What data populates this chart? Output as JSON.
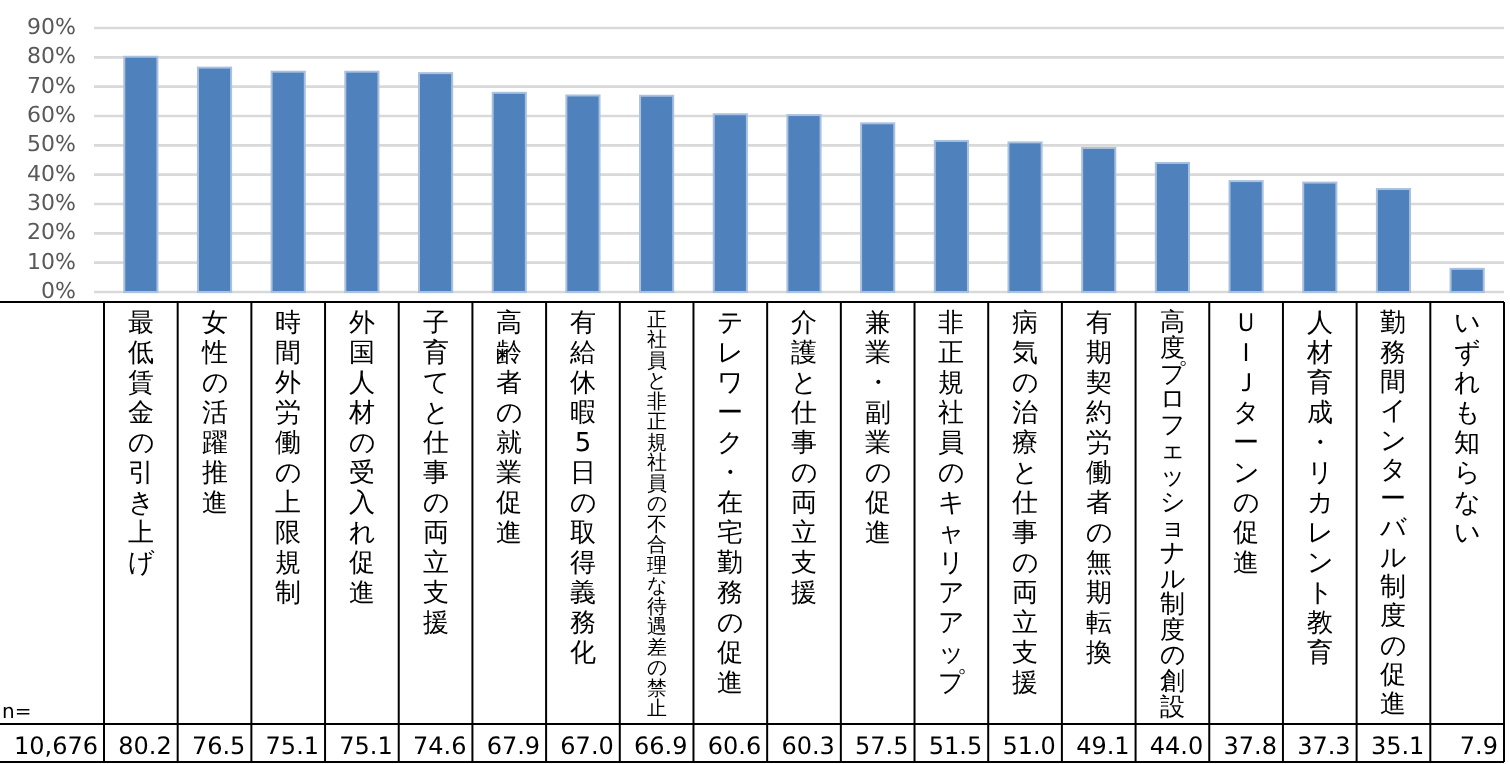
{
  "chart_data": {
    "type": "bar",
    "categories": [
      "最低賃金の引き上げ",
      "女性の活躍推進",
      "時間外労働の上限規制",
      "外国人材の受入れ促進",
      "子育てと仕事の両立支援",
      "高齢者の就業促進",
      "有給休暇5日の取得義務化",
      "正社員と非正規社員の不合理な待遇差の禁止",
      "テレワーク・在宅勤務の促進",
      "介護と仕事の両立支援",
      "兼業・副業の促進",
      "非正規社員のキャリアアップ",
      "病気の治療と仕事の両立支援",
      "有期契約労働者の無期転換",
      "高度プロフェッショナル制度の創設",
      "ＵＩＪターンの促進",
      "人材育成・リカレント教育",
      "勤務間インターバル制度の促進",
      "いずれも知らない"
    ],
    "values": [
      80.2,
      76.5,
      75.1,
      75.1,
      74.6,
      67.9,
      67.0,
      66.9,
      60.6,
      60.3,
      57.5,
      51.5,
      51.0,
      49.1,
      44.0,
      37.8,
      37.3,
      35.1,
      7.9
    ],
    "value_labels": [
      "80.2",
      "76.5",
      "75.1",
      "75.1",
      "74.6",
      "67.9",
      "67.0",
      "66.9",
      "60.6",
      "60.3",
      "57.5",
      "51.5",
      "51.0",
      "49.1",
      "44.0",
      "37.8",
      "37.3",
      "35.1",
      "7.9"
    ],
    "color": "#4f81bd",
    "ylim": [
      0,
      90
    ],
    "yticks": [
      {
        "value": 0,
        "label": "0%"
      },
      {
        "value": 10,
        "label": "10%"
      },
      {
        "value": 20,
        "label": "20%"
      },
      {
        "value": 30,
        "label": "30%"
      },
      {
        "value": 40,
        "label": "40%"
      },
      {
        "value": 50,
        "label": "50%"
      },
      {
        "value": 60,
        "label": "60%"
      },
      {
        "value": 70,
        "label": "70%"
      },
      {
        "value": 80,
        "label": "80%"
      },
      {
        "value": 90,
        "label": "90%"
      }
    ],
    "grid": "y",
    "annotations": [
      "n=",
      "10,676"
    ]
  }
}
